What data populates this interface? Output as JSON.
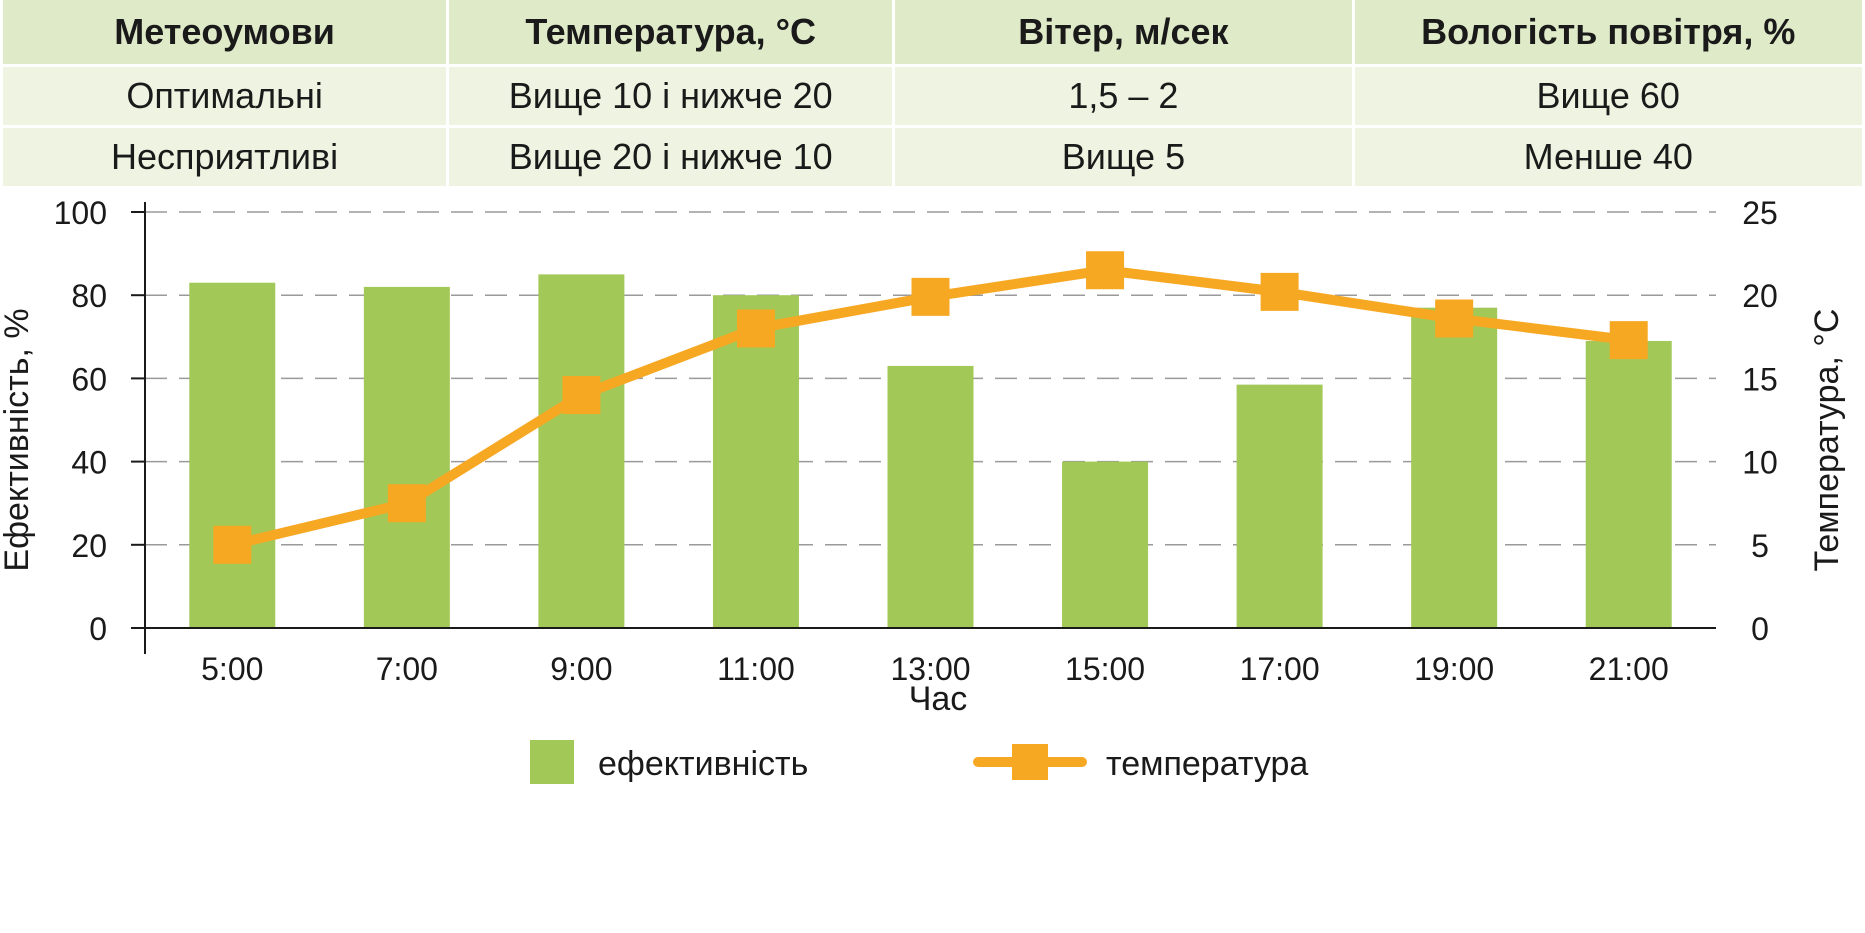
{
  "table": {
    "headers": [
      "Метеоумови",
      "Температура, °С",
      "Вітер, м/сек",
      "Вологість повітря, %"
    ],
    "rows": [
      [
        "Оптимальні",
        "Вище 10 і нижче 20",
        "1,5 – 2",
        "Вище 60"
      ],
      [
        "Несприятливі",
        "Вище 20 і нижче 10",
        "Вище 5",
        "Менше 40"
      ]
    ]
  },
  "chart_data": {
    "type": "bar+line",
    "title": "",
    "xlabel": "Час",
    "ylabel_left": "Ефективність, %",
    "ylabel_right": "Температура, °С",
    "categories": [
      "5:00",
      "7:00",
      "9:00",
      "11:00",
      "13:00",
      "15:00",
      "17:00",
      "19:00",
      "21:00"
    ],
    "ylim_left": [
      0,
      100
    ],
    "ylim_right": [
      0,
      25
    ],
    "yticks_left": [
      "0",
      "20",
      "40",
      "60",
      "80",
      "100"
    ],
    "yticks_right": [
      "0",
      "5",
      "10",
      "15",
      "20",
      "25"
    ],
    "grid": "horizontal dashed",
    "legend_position": "bottom",
    "series": [
      {
        "name": "ефективність",
        "type": "bar",
        "axis": "left",
        "color": "#a2c857",
        "values": [
          83,
          82,
          85,
          80,
          63,
          40,
          58.5,
          77,
          69
        ]
      },
      {
        "name": "температура",
        "type": "line",
        "axis": "right",
        "color": "#f7a823",
        "values": [
          5,
          7.5,
          14,
          18,
          19.9,
          21.5,
          20.2,
          18.6,
          17.3
        ]
      }
    ]
  }
}
